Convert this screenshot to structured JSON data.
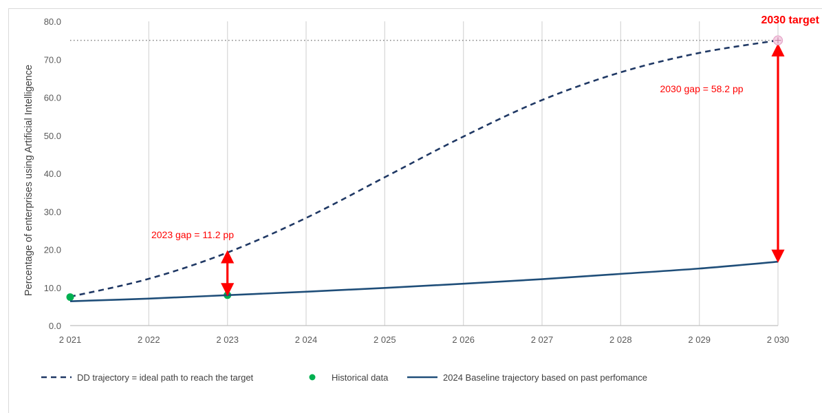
{
  "chart_data": {
    "type": "line",
    "title": "",
    "xlabel": "",
    "ylabel": "Percentage of enterprises using Artificial Intelligence",
    "xlim": [
      2021,
      2030
    ],
    "ylim": [
      0,
      80
    ],
    "x_ticks": [
      "2 021",
      "2 022",
      "2 023",
      "2 024",
      "2 025",
      "2 026",
      "2 027",
      "2 028",
      "2 029",
      "2 030"
    ],
    "y_ticks": [
      "0.0",
      "10.0",
      "20.0",
      "30.0",
      "40.0",
      "50.0",
      "60.0",
      "70.0",
      "80.0"
    ],
    "grid": "vertical",
    "target_value": 75.0,
    "series": [
      {
        "name": "DD trajectory = ideal path to reach the target",
        "style": "dashed",
        "color": "#1f3864",
        "x": [
          2021,
          2022,
          2023,
          2024,
          2025,
          2026,
          2027,
          2028,
          2029,
          2030
        ],
        "y": [
          7.6,
          12.3,
          19.2,
          28.3,
          39.0,
          49.7,
          59.3,
          66.6,
          71.7,
          75.0
        ]
      },
      {
        "name": "Historical data",
        "style": "marker",
        "color": "#00b050",
        "x": [
          2021,
          2023
        ],
        "y": [
          7.5,
          8.0
        ]
      },
      {
        "name": "2024 Baseline trajectory based on past perfomance",
        "style": "solid",
        "color": "#1f4e79",
        "x": [
          2021,
          2022,
          2023,
          2024,
          2025,
          2026,
          2027,
          2028,
          2029,
          2030
        ],
        "y": [
          6.4,
          7.1,
          8.0,
          8.9,
          9.9,
          11.0,
          12.2,
          13.6,
          15.0,
          16.8
        ]
      }
    ],
    "annotations": [
      {
        "text": "2023 gap = 11.2 pp",
        "x": 2023,
        "y_from": 8.0,
        "y_to": 19.2
      },
      {
        "text": "2030 gap = 58.2 pp",
        "x": 2030,
        "y_from": 16.8,
        "y_to": 75.0
      },
      {
        "text": "2030 target",
        "x": 2030,
        "y": 75.0
      }
    ],
    "legend_position": "bottom-left"
  },
  "colors": {
    "dd": "#1f3864",
    "baseline": "#1f4e79",
    "historical": "#00b050",
    "gap_arrow": "#ff0000",
    "target_marker": "#e6a6c9",
    "target_line": "#808080",
    "grid": "#d9d9d9"
  }
}
